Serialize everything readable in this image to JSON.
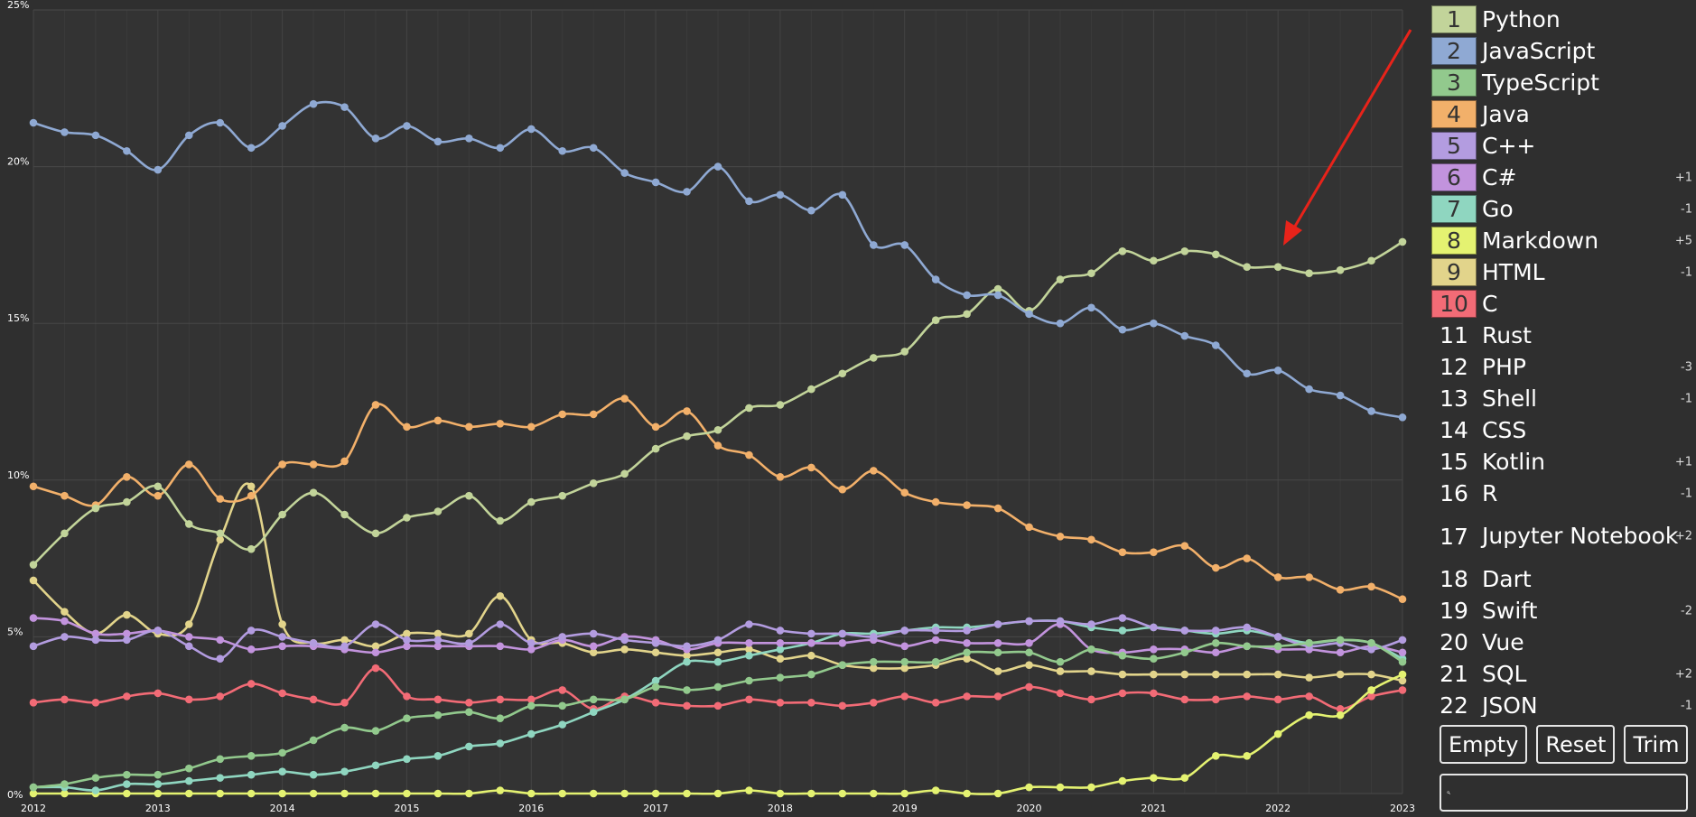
{
  "chart_data": {
    "type": "line",
    "ylim": [
      0,
      25
    ],
    "y_ticks": [
      "0%",
      "5%",
      "10%",
      "15%",
      "20%",
      "25%"
    ],
    "x_ticks": [
      "2012",
      "2013",
      "2014",
      "2015",
      "2016",
      "2017",
      "2018",
      "2019",
      "2020",
      "2021",
      "2022",
      "2023"
    ],
    "x": [
      2012.0,
      2012.25,
      2012.5,
      2012.75,
      2013.0,
      2013.25,
      2013.5,
      2013.75,
      2014.0,
      2014.25,
      2014.5,
      2014.75,
      2015.0,
      2015.25,
      2015.5,
      2015.75,
      2016.0,
      2016.25,
      2016.5,
      2016.75,
      2017.0,
      2017.25,
      2017.5,
      2017.75,
      2018.0,
      2018.25,
      2018.5,
      2018.75,
      2019.0,
      2019.25,
      2019.5,
      2019.75,
      2020.0,
      2020.25,
      2020.5,
      2020.75,
      2021.0,
      2021.25,
      2021.5,
      2021.75,
      2022.0,
      2022.25,
      2022.5,
      2022.75,
      2023.0
    ],
    "grid": true,
    "series": [
      {
        "name": "JavaScript",
        "color": "#8fa9d3",
        "values": [
          21.4,
          21.1,
          21.0,
          20.5,
          19.9,
          21.0,
          21.4,
          20.6,
          21.3,
          22.0,
          21.9,
          20.9,
          21.3,
          20.8,
          20.9,
          20.6,
          21.2,
          20.5,
          20.6,
          19.8,
          19.5,
          19.2,
          20.0,
          18.9,
          19.1,
          18.6,
          19.1,
          17.5,
          17.5,
          16.4,
          15.9,
          15.9,
          15.3,
          15.0,
          15.5,
          14.8,
          15.0,
          14.6,
          14.3,
          13.4,
          13.5,
          12.9,
          12.7,
          12.2,
          12.0
        ]
      },
      {
        "name": "Python",
        "color": "#c2d49a",
        "values": [
          7.3,
          8.3,
          9.1,
          9.3,
          9.8,
          8.6,
          8.3,
          7.8,
          8.9,
          9.6,
          8.9,
          8.3,
          8.8,
          9.0,
          9.5,
          8.7,
          9.3,
          9.5,
          9.9,
          10.2,
          11.0,
          11.4,
          11.6,
          12.3,
          12.4,
          12.9,
          13.4,
          13.9,
          14.1,
          15.1,
          15.3,
          16.1,
          15.4,
          16.4,
          16.6,
          17.3,
          17.0,
          17.3,
          17.2,
          16.8,
          16.8,
          16.6,
          16.7,
          17.0,
          17.6
        ]
      },
      {
        "name": "Java",
        "color": "#f2b06a",
        "values": [
          9.8,
          9.5,
          9.2,
          10.1,
          9.5,
          10.5,
          9.4,
          9.5,
          10.5,
          10.5,
          10.6,
          12.4,
          11.7,
          11.9,
          11.7,
          11.8,
          11.7,
          12.1,
          12.1,
          12.6,
          11.7,
          12.2,
          11.1,
          10.8,
          10.1,
          10.4,
          9.7,
          10.3,
          9.6,
          9.3,
          9.2,
          9.1,
          8.5,
          8.2,
          8.1,
          7.7,
          7.7,
          7.9,
          7.2,
          7.5,
          6.9,
          6.9,
          6.5,
          6.6,
          6.2
        ]
      },
      {
        "name": "TypeScript",
        "color": "#92c98d",
        "values": [
          0.2,
          0.3,
          0.5,
          0.6,
          0.6,
          0.8,
          1.1,
          1.2,
          1.3,
          1.7,
          2.1,
          2.0,
          2.4,
          2.5,
          2.6,
          2.4,
          2.8,
          2.8,
          3.0,
          3.0,
          3.4,
          3.3,
          3.4,
          3.6,
          3.7,
          3.8,
          4.1,
          4.2,
          4.2,
          4.2,
          4.5,
          4.5,
          4.5,
          4.2,
          4.6,
          4.4,
          4.3,
          4.5,
          4.8,
          4.7,
          4.7,
          4.8,
          4.9,
          4.8,
          4.2
        ]
      },
      {
        "name": "C++",
        "color": "#b39ce0",
        "values": [
          4.7,
          5.0,
          4.9,
          4.9,
          5.2,
          4.7,
          4.3,
          5.2,
          5.0,
          4.8,
          4.7,
          5.4,
          4.9,
          4.9,
          4.8,
          5.4,
          4.8,
          5.0,
          5.1,
          4.9,
          4.8,
          4.7,
          4.9,
          5.4,
          5.2,
          5.1,
          5.1,
          5.0,
          5.2,
          5.2,
          5.2,
          5.4,
          5.5,
          5.5,
          5.4,
          5.6,
          5.3,
          5.2,
          5.2,
          5.3,
          5.0,
          4.7,
          4.8,
          4.6,
          4.9
        ]
      },
      {
        "name": "C#",
        "color": "#c293dd",
        "values": [
          5.6,
          5.5,
          5.1,
          5.1,
          5.2,
          5.0,
          4.9,
          4.6,
          4.7,
          4.7,
          4.6,
          4.5,
          4.7,
          4.7,
          4.7,
          4.7,
          4.6,
          4.9,
          4.7,
          5.0,
          4.9,
          4.6,
          4.8,
          4.8,
          4.8,
          4.8,
          4.8,
          4.9,
          4.7,
          4.9,
          4.8,
          4.8,
          4.8,
          5.4,
          4.6,
          4.5,
          4.6,
          4.6,
          4.5,
          4.7,
          4.6,
          4.6,
          4.5,
          4.7,
          4.5
        ]
      },
      {
        "name": "Go",
        "color": "#8fd6c0",
        "values": [
          0.2,
          0.2,
          0.1,
          0.3,
          0.3,
          0.4,
          0.5,
          0.6,
          0.7,
          0.6,
          0.7,
          0.9,
          1.1,
          1.2,
          1.5,
          1.6,
          1.9,
          2.2,
          2.6,
          3.0,
          3.6,
          4.2,
          4.2,
          4.4,
          4.6,
          4.8,
          5.1,
          5.1,
          5.2,
          5.3,
          5.3,
          5.4,
          5.5,
          5.5,
          5.3,
          5.2,
          5.3,
          5.2,
          5.1,
          5.2,
          5.0,
          4.8,
          4.9,
          4.8,
          4.3
        ]
      },
      {
        "name": "Markdown",
        "color": "#e4f271",
        "values": [
          0.0,
          0.0,
          0.0,
          0.0,
          0.0,
          0.0,
          0.0,
          0.0,
          0.0,
          0.0,
          0.0,
          0.0,
          0.0,
          0.0,
          0.0,
          0.1,
          0.0,
          0.0,
          0.0,
          0.0,
          0.0,
          0.0,
          0.0,
          0.1,
          0.0,
          0.0,
          0.0,
          0.0,
          0.0,
          0.1,
          0.0,
          0.0,
          0.2,
          0.2,
          0.2,
          0.4,
          0.5,
          0.5,
          1.2,
          1.2,
          1.9,
          2.5,
          2.5,
          3.3,
          3.8
        ]
      },
      {
        "name": "HTML",
        "color": "#e2d48b",
        "values": [
          6.8,
          5.8,
          5.1,
          5.7,
          5.1,
          5.4,
          8.1,
          9.8,
          5.4,
          4.8,
          4.9,
          4.7,
          5.1,
          5.1,
          5.1,
          6.3,
          4.9,
          4.8,
          4.5,
          4.6,
          4.5,
          4.4,
          4.5,
          4.6,
          4.3,
          4.4,
          4.1,
          4.0,
          4.0,
          4.1,
          4.3,
          3.9,
          4.1,
          3.9,
          3.9,
          3.8,
          3.8,
          3.8,
          3.8,
          3.8,
          3.8,
          3.7,
          3.8,
          3.8,
          3.6
        ]
      },
      {
        "name": "C",
        "color": "#f26b76",
        "values": [
          2.9,
          3.0,
          2.9,
          3.1,
          3.2,
          3.0,
          3.1,
          3.5,
          3.2,
          3.0,
          2.9,
          4.0,
          3.1,
          3.0,
          2.9,
          3.0,
          3.0,
          3.3,
          2.7,
          3.1,
          2.9,
          2.8,
          2.8,
          3.0,
          2.9,
          2.9,
          2.8,
          2.9,
          3.1,
          2.9,
          3.1,
          3.1,
          3.4,
          3.2,
          3.0,
          3.2,
          3.2,
          3.0,
          3.0,
          3.1,
          3.0,
          3.1,
          2.7,
          3.1,
          3.3
        ]
      }
    ]
  },
  "legend": [
    {
      "rank": "1",
      "name": "Python",
      "delta": "",
      "color": "#c2d49a"
    },
    {
      "rank": "2",
      "name": "JavaScript",
      "delta": "",
      "color": "#8fa9d3"
    },
    {
      "rank": "3",
      "name": "TypeScript",
      "delta": "",
      "color": "#92c98d"
    },
    {
      "rank": "4",
      "name": "Java",
      "delta": "",
      "color": "#f2b06a"
    },
    {
      "rank": "5",
      "name": "C++",
      "delta": "",
      "color": "#b39ce0"
    },
    {
      "rank": "6",
      "name": "C#",
      "delta": "+1",
      "color": "#c293dd"
    },
    {
      "rank": "7",
      "name": "Go",
      "delta": "-1",
      "color": "#8fd6c0"
    },
    {
      "rank": "8",
      "name": "Markdown",
      "delta": "+5",
      "color": "#e4f271"
    },
    {
      "rank": "9",
      "name": "HTML",
      "delta": "-1",
      "color": "#e2d48b"
    },
    {
      "rank": "10",
      "name": "C",
      "delta": "",
      "color": "#f26b76"
    },
    {
      "rank": "11",
      "name": "Rust",
      "delta": "",
      "color": ""
    },
    {
      "rank": "12",
      "name": "PHP",
      "delta": "-3",
      "color": ""
    },
    {
      "rank": "13",
      "name": "Shell",
      "delta": "-1",
      "color": ""
    },
    {
      "rank": "14",
      "name": "CSS",
      "delta": "",
      "color": ""
    },
    {
      "rank": "15",
      "name": "Kotlin",
      "delta": "+1",
      "color": ""
    },
    {
      "rank": "16",
      "name": "R",
      "delta": "-1",
      "color": ""
    },
    {
      "rank": "17",
      "name": "Jupyter Notebook",
      "delta": "+2",
      "color": ""
    },
    {
      "rank": "18",
      "name": "Dart",
      "delta": "",
      "color": ""
    },
    {
      "rank": "19",
      "name": "Swift",
      "delta": "-2",
      "color": ""
    },
    {
      "rank": "20",
      "name": "Vue",
      "delta": "",
      "color": ""
    },
    {
      "rank": "21",
      "name": "SQL",
      "delta": "+2",
      "color": ""
    },
    {
      "rank": "22",
      "name": "JSON",
      "delta": "-1",
      "color": ""
    }
  ],
  "buttons": {
    "empty": "Empty",
    "reset": "Reset",
    "trim": "Trim"
  },
  "search": {
    "value": "",
    "icon": "search-icon"
  },
  "annotation": {
    "arrow_color": "#e8231a"
  }
}
